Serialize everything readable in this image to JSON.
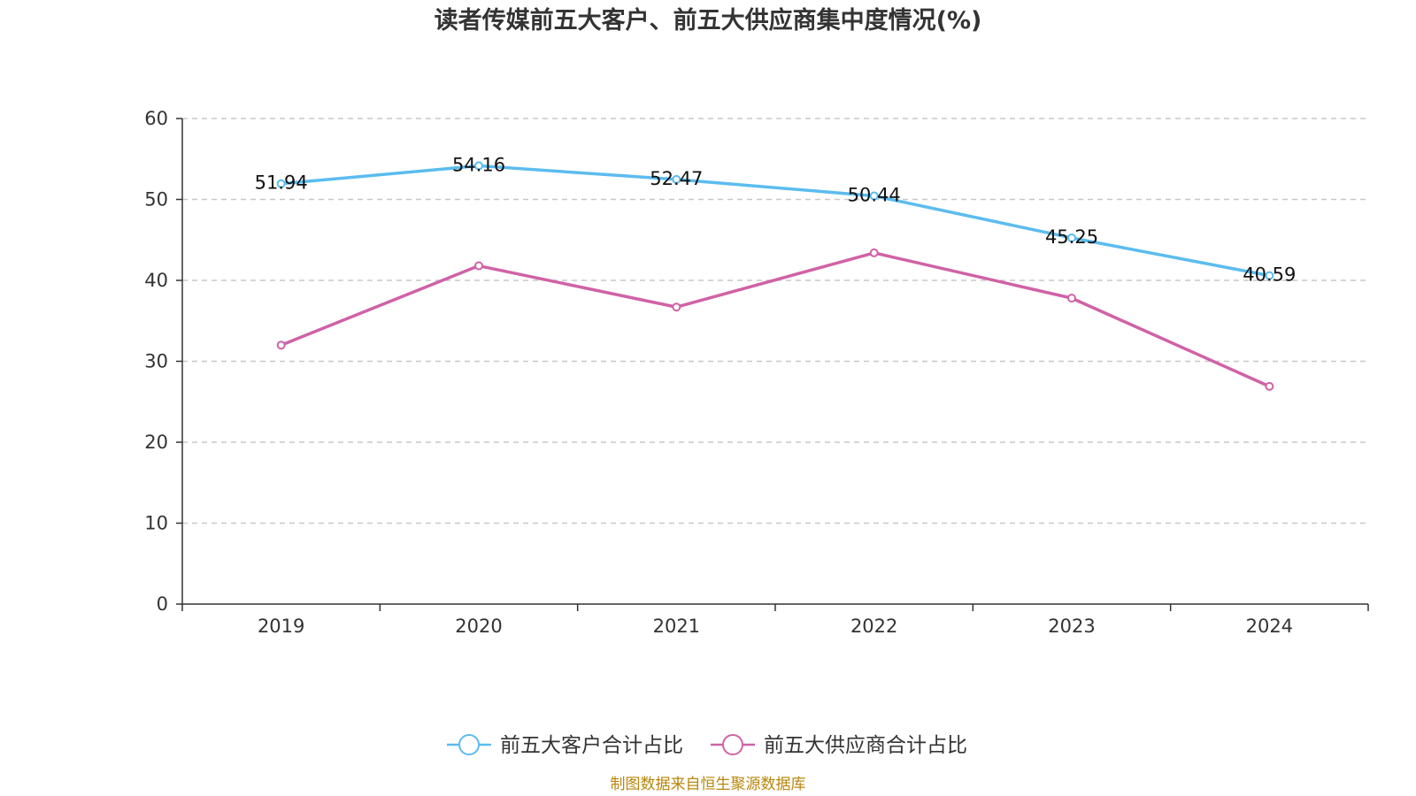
{
  "chart_data": {
    "type": "line",
    "title": "读者传媒前五大客户、前五大供应商集中度情况(%)",
    "categories": [
      "2019",
      "2020",
      "2021",
      "2022",
      "2023",
      "2024"
    ],
    "ylim": [
      0,
      60
    ],
    "yticks": [
      "0",
      "10",
      "20",
      "30",
      "40",
      "50",
      "60"
    ],
    "grid": true,
    "legend_position": "bottom",
    "series": [
      {
        "name": "前五大客户合计占比",
        "color": "#5bbcee",
        "values": [
          51.94,
          54.16,
          52.47,
          50.44,
          45.25,
          40.59
        ],
        "labels": [
          "51.94",
          "54.16",
          "52.47",
          "50.44",
          "45.25",
          "40.59"
        ]
      },
      {
        "name": "前五大供应商合计占比",
        "color": "#d062a6",
        "values": [
          32.0,
          41.8,
          36.7,
          43.4,
          37.8,
          26.9
        ]
      }
    ]
  },
  "source": "制图数据来自恒生聚源数据库"
}
